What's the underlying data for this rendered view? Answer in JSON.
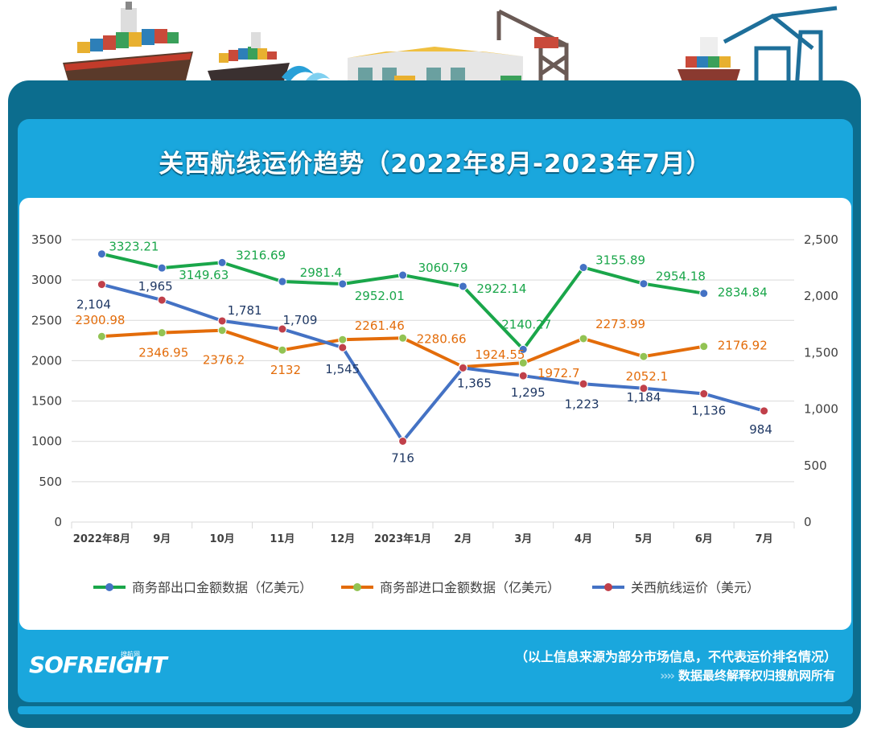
{
  "header": {
    "title": "关西航线运价趋势（2022年8月-2023年7月）"
  },
  "footer": {
    "brand": "SOFREIGHT",
    "brand_sub": "搜航网",
    "note_source": "（以上信息来源为部分市场信息，不代表运价排名情况）",
    "note_rights_arrows": "››››",
    "note_rights": "数据最终解释权归搜航网所有"
  },
  "colors": {
    "export": "#1aa64a",
    "import": "#e36c0a",
    "freight": "#4472c4",
    "export_marker": "#4472c4",
    "import_marker": "#92c353",
    "freight_marker": "#c0404a",
    "freight_label": "#1f3864"
  },
  "chart_data": {
    "type": "line",
    "categories": [
      "2022年8月",
      "9月",
      "10月",
      "11月",
      "12月",
      "2023年1月",
      "2月",
      "3月",
      "4月",
      "5月",
      "6月",
      "7月"
    ],
    "y_left": {
      "min": 0,
      "max": 3500,
      "ticks": [
        "0",
        "500",
        "1000",
        "1500",
        "2000",
        "2500",
        "3000",
        "3500"
      ]
    },
    "y_right": {
      "min": 0,
      "max": 2500,
      "ticks": [
        "0",
        "500",
        "1,000",
        "1,500",
        "2,000",
        "2,500"
      ]
    },
    "series": [
      {
        "name": "商务部出口金额数据（亿美元）",
        "axis": "left",
        "values": [
          3323.21,
          3149.63,
          3216.69,
          2981.4,
          2952.01,
          3060.79,
          2922.14,
          2140.27,
          3155.89,
          2954.18,
          2834.84,
          null
        ],
        "labels": [
          "3323.21",
          "3149.63",
          "3216.69",
          "2981.4",
          "2952.01",
          "3060.79",
          "2922.14",
          "2140.27",
          "3155.89",
          "2954.18",
          "2834.84",
          ""
        ]
      },
      {
        "name": "商务部进口金额数据（亿美元）",
        "axis": "left",
        "values": [
          2300.98,
          2346.95,
          2376.2,
          2132,
          2261.46,
          2280.66,
          1924.55,
          1972.7,
          2273.99,
          2052.1,
          2176.92,
          null
        ],
        "labels": [
          "2300.98",
          "2346.95",
          "2376.2",
          "2132",
          "2261.46",
          "2280.66",
          "1924.55",
          "1972.7",
          "2273.99",
          "2052.1",
          "2176.92",
          ""
        ]
      },
      {
        "name": "关西航线运价（美元）",
        "axis": "right",
        "values": [
          2104,
          1965,
          1781,
          1709,
          1545,
          716,
          1365,
          1295,
          1223,
          1184,
          1136,
          984
        ],
        "labels": [
          "2,104",
          "1,965",
          "1,781",
          "1,709",
          "1,545",
          "716",
          "1,365",
          "1,295",
          "1,223",
          "1,184",
          "1,136",
          "984"
        ]
      }
    ],
    "legend": "bottom"
  }
}
